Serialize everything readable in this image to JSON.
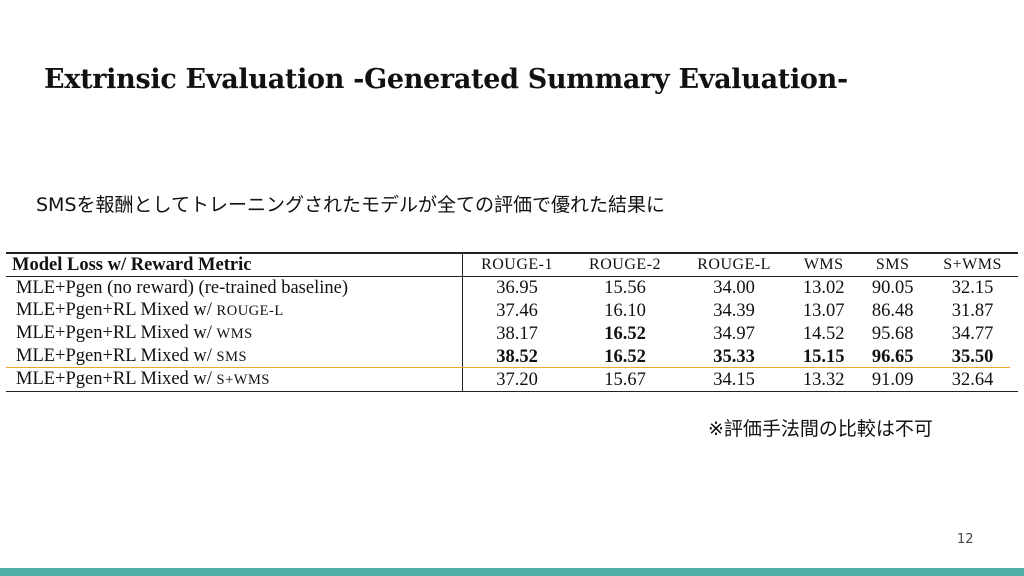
{
  "slide": {
    "title": "Extrinsic Evaluation -Generated Summary Evaluation-",
    "subtitle": "SMSを報酬としてトレーニングされたモデルが全ての評価で優れた結果に",
    "note": "※評価手法間の比較は不可",
    "page_number": "12",
    "footer_color": "#4fb0a6",
    "highlight_color": "#f0a830"
  },
  "table": {
    "header": {
      "model": "Model Loss w/ Reward Metric",
      "metrics": [
        "ROUGE-1",
        "ROUGE-2",
        "ROUGE-L",
        "WMS",
        "SMS",
        "S+WMS"
      ]
    },
    "rows": [
      {
        "model": "MLE+Pgen (no reward) (re-trained baseline)",
        "metric": "",
        "values": [
          "36.95",
          "15.56",
          "34.00",
          "13.02",
          "90.05",
          "32.15"
        ]
      },
      {
        "model": "MLE+Pgen+RL Mixed w/ ",
        "metric": "ROUGE-L",
        "values": [
          "37.46",
          "16.10",
          "34.39",
          "13.07",
          "86.48",
          "31.87"
        ]
      },
      {
        "model": "MLE+Pgen+RL Mixed w/ ",
        "metric": "WMS",
        "values": [
          "38.17",
          "16.52",
          "34.97",
          "14.52",
          "95.68",
          "34.77"
        ]
      },
      {
        "model": "MLE+Pgen+RL Mixed w/ ",
        "metric": "SMS",
        "values": [
          "38.52",
          "16.52",
          "35.33",
          "15.15",
          "96.65",
          "35.50"
        ]
      },
      {
        "model": "MLE+Pgen+RL Mixed w/ ",
        "metric": "S+WMS",
        "values": [
          "37.20",
          "15.67",
          "34.15",
          "13.32",
          "91.09",
          "32.64"
        ]
      }
    ]
  }
}
